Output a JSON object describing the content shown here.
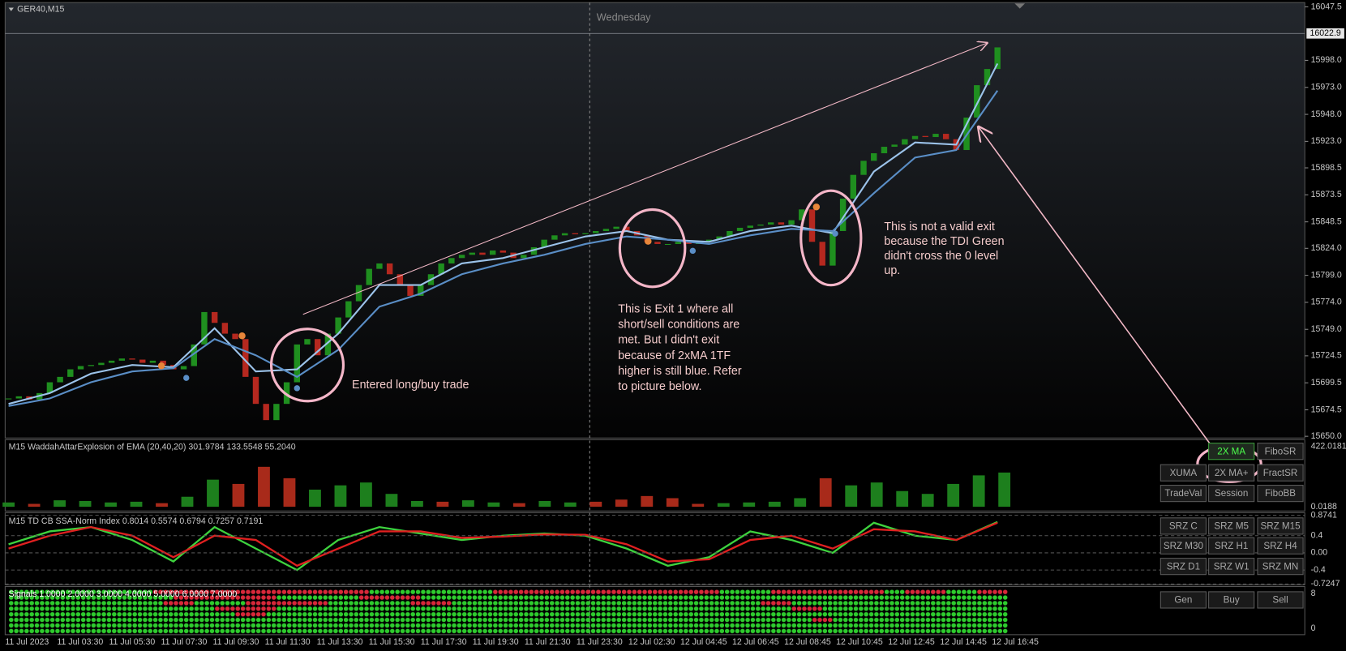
{
  "window": {
    "symbol": "GER40,M15",
    "day_label": "Wednesday"
  },
  "price_chart": {
    "type": "candlestick",
    "closes": [
      15685,
      15687,
      15684,
      15690,
      15700,
      15705,
      15712,
      15715,
      15716,
      15718,
      15720,
      15722,
      15721,
      15718,
      15720,
      15716,
      15712,
      15715,
      15735,
      15765,
      15755,
      15745,
      15740,
      15705,
      15680,
      15665,
      15680,
      15700,
      15735,
      15740,
      15725,
      15745,
      15760,
      15775,
      15790,
      15805,
      15810,
      15800,
      15790,
      15780,
      15790,
      15800,
      15810,
      15815,
      15818,
      15820,
      15818,
      15822,
      15820,
      15815,
      15818,
      15825,
      15832,
      15836,
      15838,
      15837,
      15838,
      15840,
      15842,
      15844,
      15840,
      15836,
      15830,
      15828,
      15828,
      15830,
      15828,
      15830,
      15832,
      15835,
      15840,
      15843,
      15845,
      15846,
      15848,
      15846,
      15850,
      15860,
      15830,
      15808,
      15840,
      15870,
      15892,
      15905,
      15912,
      15918,
      15920,
      15925,
      15928,
      15927,
      15930,
      15925,
      15915,
      15945,
      15975,
      15990,
      16010
    ],
    "ma_fast": [
      15680,
      15690,
      15708,
      15716,
      15714,
      15750,
      15710,
      15712,
      15745,
      15790,
      15790,
      15810,
      15815,
      15825,
      15835,
      15840,
      15832,
      15830,
      15840,
      15845,
      15838,
      15895,
      15922,
      15920,
      15995
    ],
    "ma_slow": [
      15678,
      15685,
      15700,
      15710,
      15713,
      15740,
      15725,
      15705,
      15730,
      15770,
      15782,
      15800,
      15810,
      15818,
      15828,
      15835,
      15832,
      15828,
      15836,
      15842,
      15840,
      15875,
      15908,
      15915,
      15970
    ],
    "ylim": [
      15650,
      16047.5
    ],
    "yticks": [
      16047.5,
      {
        "value": 15998.0,
        "label": "15998.0"
      },
      {
        "value": 15973.0,
        "label": "15973.0"
      },
      {
        "value": 15948.0,
        "label": "15948.0"
      },
      {
        "value": 15923.0,
        "label": "15923.0"
      },
      15898.5,
      15873.5,
      15848.5,
      {
        "value": 15824.0,
        "label": "15824.0"
      },
      {
        "value": 15799.0,
        "label": "15799.0"
      },
      {
        "value": 15774.0,
        "label": "15774.0"
      },
      {
        "value": 15749.0,
        "label": "15749.0"
      },
      15724.5,
      15699.5,
      15674.5,
      {
        "value": 15650.0,
        "label": "15650.0"
      }
    ],
    "current_price": 16022.9,
    "up_color": "#1f8f1f",
    "down_color": "#b5281f",
    "ma_fast_color": "#9cc3ea",
    "ma_slow_color": "#5a8ec6"
  },
  "wae": {
    "type": "bar",
    "label": "M15  WaddahAttarExplosion of EMA (20,40,20) 301.9784 133.5548 55.2040",
    "values": [
      30,
      20,
      45,
      40,
      30,
      35,
      25,
      70,
      190,
      160,
      280,
      200,
      120,
      150,
      170,
      90,
      40,
      35,
      45,
      30,
      25,
      40,
      30,
      35,
      50,
      75,
      60,
      20,
      25,
      30,
      35,
      60,
      200,
      150,
      170,
      110,
      90,
      160,
      220,
      240
    ],
    "trend": "grggggrggrrrgggggrggrggrrrrrggggrggggggg",
    "ylim": [
      0.0188,
      422.0181
    ],
    "yticks": [
      422.0181,
      0.0188
    ]
  },
  "tdi": {
    "type": "line",
    "label": "M15  TD CB SSA-Norm Index 0.8014 0.5574 0.6794 0.7257 0.7191",
    "series": [
      {
        "color": "#3ed23e",
        "values": [
          0.2,
          0.5,
          0.6,
          0.3,
          -0.2,
          0.6,
          0.1,
          -0.4,
          0.3,
          0.6,
          0.45,
          0.3,
          0.4,
          0.45,
          0.4,
          0.1,
          -0.3,
          -0.1,
          0.5,
          0.3,
          0.0,
          0.7,
          0.4,
          0.3,
          0.72
        ]
      },
      {
        "color": "#e02020",
        "values": [
          0.1,
          0.4,
          0.6,
          0.4,
          -0.1,
          0.4,
          0.3,
          -0.3,
          0.1,
          0.5,
          0.5,
          0.35,
          0.38,
          0.43,
          0.42,
          0.2,
          -0.2,
          -0.15,
          0.3,
          0.4,
          0.1,
          0.55,
          0.5,
          0.3,
          0.7
        ]
      }
    ],
    "ylim": [
      -0.7247,
      0.8741
    ],
    "yticks": [
      0.8741,
      0.4,
      {
        "value": 0,
        "label": "0.00"
      },
      -0.4,
      -0.7247
    ]
  },
  "signals": {
    "label": "Signals 1.0000 2.0000 3.0000 4.0000 5.0000 6.0000 7.0000",
    "runs": [
      [
        14,
        21,
        12,
        22,
        5,
        11,
        2,
        4,
        3,
        3
      ],
      [
        16,
        10,
        8,
        6,
        57
      ],
      [
        15,
        3,
        5,
        8,
        8,
        4,
        30,
        3,
        21
      ],
      [
        20,
        6,
        50,
        3,
        18
      ],
      [
        22,
        3,
        72
      ],
      [
        78,
        2,
        17
      ],
      [
        97
      ],
      [
        97
      ]
    ],
    "colors": [
      "#2ecc2e",
      "#d8283a"
    ],
    "yticks": [
      8,
      0
    ]
  },
  "time_axis": [
    "11 Jul 2023",
    "11 Jul 03:30",
    "11 Jul 05:30",
    "11 Jul 07:30",
    "11 Jul 09:30",
    "11 Jul 11:30",
    "11 Jul 13:30",
    "11 Jul 15:30",
    "11 Jul 17:30",
    "11 Jul 19:30",
    "11 Jul 21:30",
    "11 Jul 23:30",
    "12 Jul 02:30",
    "12 Jul 04:45",
    "12 Jul 06:45",
    "12 Jul 08:45",
    "12 Jul 10:45",
    "12 Jul 12:45",
    "12 Jul 14:45",
    "12 Jul 16:45"
  ],
  "annotations": {
    "entry": "Entered long/buy trade",
    "exit1": [
      "This is Exit 1 where all",
      "short/sell conditions are",
      "met. But I didn't exit",
      "because of 2xMA 1TF",
      "higher is still blue. Refer",
      "to picture below."
    ],
    "invalid_exit": [
      "This is not a valid exit",
      "because the TDI Green",
      "didn't cross the 0 level",
      "up."
    ]
  },
  "buttons": [
    [
      "2X MA",
      "FiboSR"
    ],
    [
      "XUMA",
      "2X MA+",
      "FractSR"
    ],
    [
      "TradeVal",
      "Session",
      "FiboBB"
    ],
    [
      "SRZ C",
      "SRZ M5",
      "SRZ M15"
    ],
    [
      "SRZ M30",
      "SRZ H1",
      "SRZ H4"
    ],
    [
      "SRZ D1",
      "SRZ W1",
      "SRZ MN"
    ],
    [
      "Gen",
      "Buy",
      "Sell"
    ]
  ]
}
